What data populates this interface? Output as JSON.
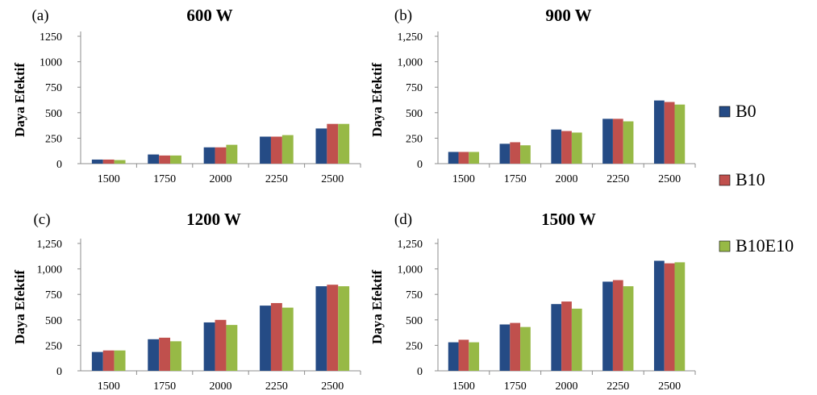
{
  "colors": {
    "B0": "#254b85",
    "B10": "#c0504d",
    "B10E10": "#97b946",
    "axis": "#8c8c8c"
  },
  "legend": [
    {
      "name": "B0",
      "color": "#254b85"
    },
    {
      "name": "B10",
      "color": "#c0504d"
    },
    {
      "name": "B10E10",
      "color": "#97b946"
    }
  ],
  "chart_data": [
    {
      "type": "bar",
      "panel": "(a)",
      "title": "600 W",
      "ylabel": "Daya Efektif",
      "xlabel": "",
      "categories": [
        "1500",
        "1750",
        "2000",
        "2250",
        "2500"
      ],
      "ylim": [
        0,
        1250
      ],
      "yticks": [
        0,
        250,
        500,
        750,
        1000,
        1250
      ],
      "ytick_labels": [
        "0",
        "250",
        "500",
        "750",
        "1000",
        "1250"
      ],
      "series": [
        {
          "name": "B0",
          "values": [
            40,
            90,
            160,
            265,
            345
          ]
        },
        {
          "name": "B10",
          "values": [
            40,
            80,
            160,
            265,
            390
          ]
        },
        {
          "name": "B10E10",
          "values": [
            35,
            80,
            185,
            280,
            390
          ]
        }
      ]
    },
    {
      "type": "bar",
      "panel": "(b)",
      "title": "900 W",
      "ylabel": "Daya Efektif",
      "xlabel": "",
      "categories": [
        "1500",
        "1750",
        "2000",
        "2250",
        "2500"
      ],
      "ylim": [
        0,
        1250
      ],
      "yticks": [
        0,
        250,
        500,
        750,
        1000,
        1250
      ],
      "ytick_labels": [
        "0",
        "250",
        "500",
        "750",
        "1,000",
        "1,250"
      ],
      "series": [
        {
          "name": "B0",
          "values": [
            115,
            195,
            335,
            440,
            620
          ]
        },
        {
          "name": "B10",
          "values": [
            115,
            210,
            320,
            440,
            605
          ]
        },
        {
          "name": "B10E10",
          "values": [
            115,
            180,
            305,
            415,
            580
          ]
        }
      ]
    },
    {
      "type": "bar",
      "panel": "(c)",
      "title": "1200 W",
      "ylabel": "Daya Efektif",
      "xlabel": "",
      "categories": [
        "1500",
        "1750",
        "2000",
        "2250",
        "2500"
      ],
      "ylim": [
        0,
        1250
      ],
      "yticks": [
        0,
        250,
        500,
        750,
        1000,
        1250
      ],
      "ytick_labels": [
        "0",
        "250",
        "500",
        "750",
        "1,000",
        "1,250"
      ],
      "series": [
        {
          "name": "B0",
          "values": [
            185,
            310,
            475,
            640,
            830
          ]
        },
        {
          "name": "B10",
          "values": [
            200,
            325,
            500,
            665,
            845
          ]
        },
        {
          "name": "B10E10",
          "values": [
            200,
            290,
            450,
            620,
            830
          ]
        }
      ]
    },
    {
      "type": "bar",
      "panel": "(d)",
      "title": "1500 W",
      "ylabel": "Daya Efektif",
      "xlabel": "",
      "categories": [
        "1500",
        "1750",
        "2000",
        "2250",
        "2500"
      ],
      "ylim": [
        0,
        1250
      ],
      "yticks": [
        0,
        250,
        500,
        750,
        1000,
        1250
      ],
      "ytick_labels": [
        "0",
        "250",
        "500",
        "750",
        "1,000",
        "1,250"
      ],
      "series": [
        {
          "name": "B0",
          "values": [
            280,
            455,
            655,
            875,
            1080
          ]
        },
        {
          "name": "B10",
          "values": [
            305,
            470,
            680,
            890,
            1055
          ]
        },
        {
          "name": "B10E10",
          "values": [
            280,
            430,
            610,
            830,
            1065
          ]
        }
      ]
    }
  ]
}
